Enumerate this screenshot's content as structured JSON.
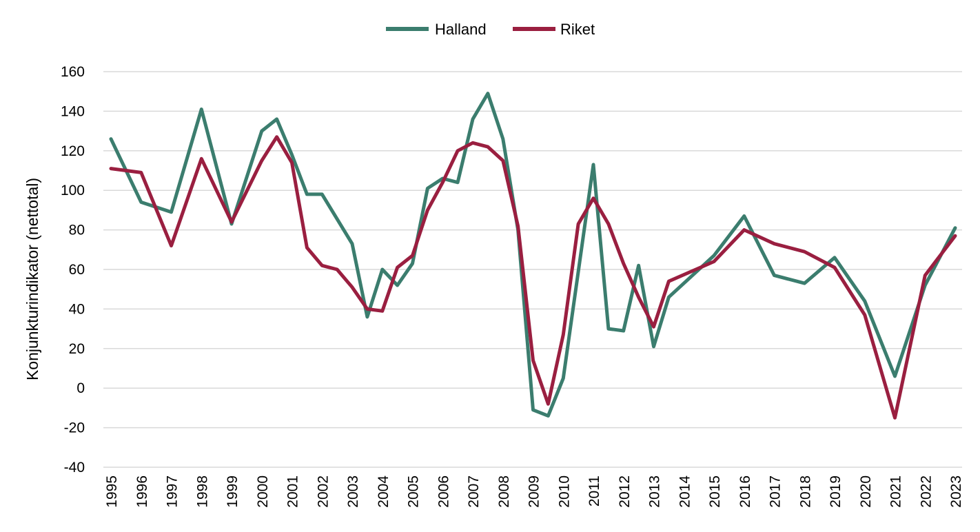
{
  "chart_data": {
    "type": "line",
    "title": "",
    "xlabel": "",
    "ylabel": "Konjunkturindikator (nettotal)",
    "ylim": [
      -40,
      160
    ],
    "yticks": [
      -40,
      -20,
      0,
      20,
      40,
      60,
      80,
      100,
      120,
      140,
      160
    ],
    "xlim": [
      1995,
      2023
    ],
    "xticks": [
      "1995",
      "1996",
      "1997",
      "1998",
      "1999",
      "2000",
      "2001",
      "2002",
      "2003",
      "2004",
      "2005",
      "2006",
      "2007",
      "2008",
      "2009",
      "2010",
      "2011",
      "2012",
      "2013",
      "2014",
      "2015",
      "2016",
      "2017",
      "2018",
      "2019",
      "2020",
      "2021",
      "2022",
      "2023"
    ],
    "grid": true,
    "legend_position": "top-center",
    "series": [
      {
        "name": "Halland",
        "color": "#3b7d6e",
        "x": [
          1995,
          1996,
          1997,
          1998,
          1999,
          2000,
          2000.5,
          2001,
          2001.5,
          2002,
          2003,
          2003.5,
          2004,
          2004.5,
          2005,
          2005.5,
          2006,
          2006.5,
          2007,
          2007.5,
          2008,
          2008.5,
          2009,
          2009.5,
          2010,
          2011,
          2011.5,
          2012,
          2012.5,
          2013,
          2013.5,
          2015,
          2016,
          2017,
          2018,
          2019,
          2020,
          2021,
          2022,
          2023
        ],
        "y": [
          126,
          94,
          89,
          141,
          83,
          130,
          136,
          118,
          98,
          98,
          73,
          36,
          60,
          52,
          63,
          101,
          106,
          104,
          136,
          149,
          126,
          80,
          -11,
          -14,
          5,
          113,
          30,
          29,
          62,
          21,
          46,
          67,
          87,
          57,
          53,
          66,
          44,
          6,
          52,
          81
        ]
      },
      {
        "name": "Riket",
        "color": "#9a1f40",
        "x": [
          1995,
          1996,
          1997,
          1998,
          1999,
          2000,
          2000.5,
          2001,
          2001.5,
          2002,
          2002.5,
          2003,
          2003.5,
          2004,
          2004.5,
          2005,
          2005.5,
          2006,
          2006.5,
          2007,
          2007.5,
          2008,
          2008.5,
          2009,
          2009.5,
          2010,
          2010.5,
          2011,
          2011.5,
          2012,
          2012.5,
          2013,
          2013.5,
          2015,
          2016,
          2017,
          2018,
          2019,
          2020,
          2021,
          2022,
          2023
        ],
        "y": [
          111,
          109,
          72,
          116,
          84,
          115,
          127,
          114,
          71,
          62,
          60,
          51,
          40,
          39,
          61,
          67,
          90,
          104,
          120,
          124,
          122,
          115,
          82,
          14,
          -8,
          27,
          83,
          96,
          83,
          63,
          46,
          31,
          54,
          64,
          80,
          73,
          69,
          61,
          37,
          -15,
          57,
          77
        ]
      }
    ]
  }
}
